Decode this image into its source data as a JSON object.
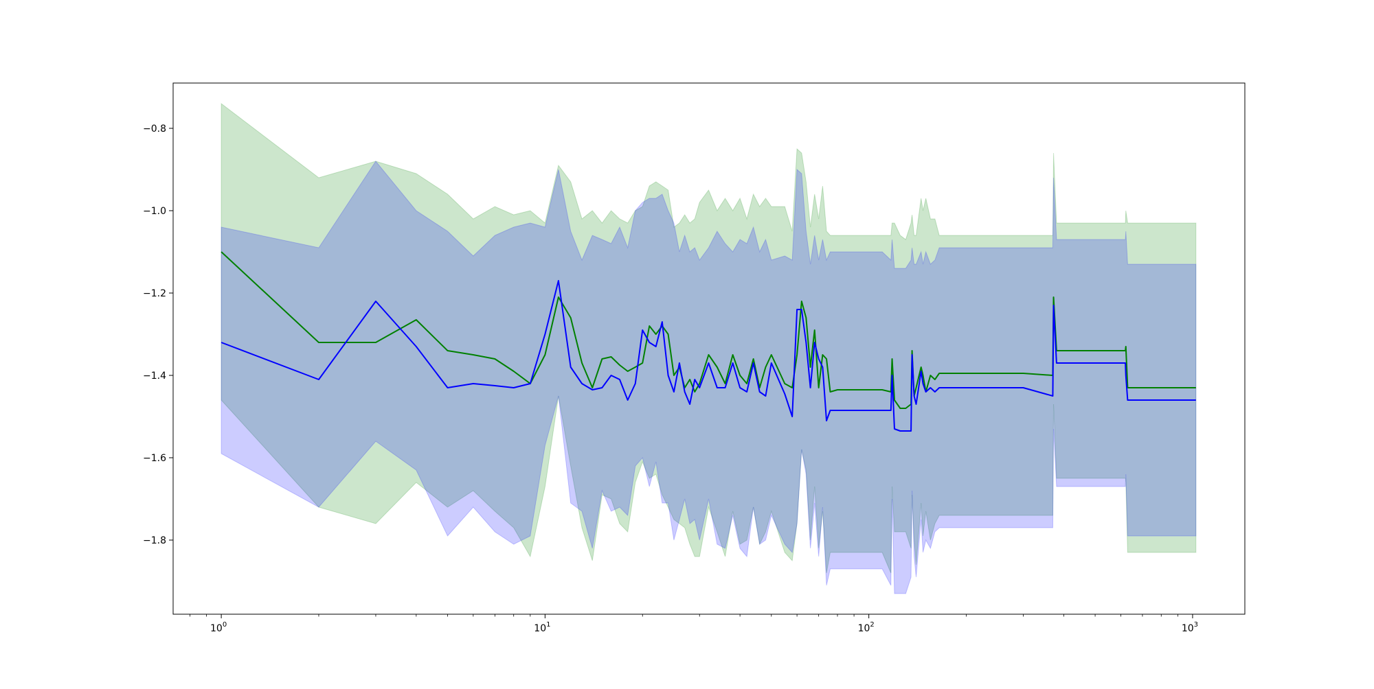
{
  "chart_data": {
    "type": "line",
    "title": "",
    "xlabel": "",
    "ylabel": "",
    "xscale": "log",
    "xlim": [
      0.71,
      1450
    ],
    "ylim": [
      -1.98,
      -0.69
    ],
    "grid": false,
    "x_ticks": [
      {
        "value": 1,
        "base": "10",
        "exp": "0"
      },
      {
        "value": 10,
        "base": "10",
        "exp": "1"
      },
      {
        "value": 100,
        "base": "10",
        "exp": "2"
      },
      {
        "value": 1000,
        "base": "10",
        "exp": "3"
      }
    ],
    "y_ticks": [
      {
        "value": -0.8,
        "label": "−0.8"
      },
      {
        "value": -1.0,
        "label": "−1.0"
      },
      {
        "value": -1.2,
        "label": "−1.2"
      },
      {
        "value": -1.4,
        "label": "−1.4"
      },
      {
        "value": -1.6,
        "label": "−1.6"
      },
      {
        "value": -1.8,
        "label": "−1.8"
      }
    ],
    "series": [
      {
        "color": "#008000",
        "band_alpha": 0.2,
        "x": [
          1,
          2,
          3,
          4,
          5,
          6,
          7,
          8,
          9,
          10,
          11,
          12,
          13,
          14,
          15,
          16,
          17,
          18,
          19,
          20,
          21,
          22,
          23,
          24,
          25,
          26,
          27,
          28,
          29,
          30,
          32,
          34,
          36,
          38,
          40,
          42,
          44,
          46,
          48,
          50,
          55,
          58,
          60,
          62,
          64,
          66,
          68,
          70,
          72,
          74,
          76,
          80,
          90,
          100,
          110,
          117,
          118,
          120,
          125,
          130,
          135,
          136,
          138,
          140,
          145,
          147,
          150,
          155,
          160,
          165,
          200,
          250,
          300,
          370,
          372,
          380,
          400,
          500,
          600,
          620,
          622,
          630,
          700,
          800,
          1024
        ],
        "y": [
          -1.1,
          -1.32,
          -1.32,
          -1.265,
          -1.34,
          -1.35,
          -1.36,
          -1.39,
          -1.42,
          -1.35,
          -1.21,
          -1.26,
          -1.37,
          -1.43,
          -1.36,
          -1.355,
          -1.375,
          -1.39,
          -1.38,
          -1.37,
          -1.28,
          -1.3,
          -1.28,
          -1.3,
          -1.4,
          -1.38,
          -1.43,
          -1.41,
          -1.44,
          -1.42,
          -1.35,
          -1.38,
          -1.42,
          -1.35,
          -1.4,
          -1.42,
          -1.36,
          -1.43,
          -1.38,
          -1.35,
          -1.42,
          -1.43,
          -1.35,
          -1.22,
          -1.26,
          -1.38,
          -1.29,
          -1.43,
          -1.35,
          -1.36,
          -1.44,
          -1.435,
          -1.435,
          -1.435,
          -1.435,
          -1.44,
          -1.36,
          -1.46,
          -1.48,
          -1.48,
          -1.47,
          -1.34,
          -1.45,
          -1.43,
          -1.38,
          -1.4,
          -1.44,
          -1.4,
          -1.41,
          -1.395,
          -1.395,
          -1.395,
          -1.395,
          -1.4,
          -1.21,
          -1.34,
          -1.34,
          -1.34,
          -1.34,
          -1.34,
          -1.33,
          -1.43,
          -1.43,
          -1.43,
          -1.43
        ],
        "upper": [
          -0.74,
          -0.92,
          -0.88,
          -0.91,
          -0.96,
          -1.02,
          -0.99,
          -1.01,
          -1.0,
          -1.03,
          -0.89,
          -0.93,
          -1.02,
          -1.0,
          -1.03,
          -1.0,
          -1.02,
          -1.03,
          -1.0,
          -0.99,
          -0.94,
          -0.93,
          -0.94,
          -0.95,
          -1.04,
          -1.03,
          -1.01,
          -1.03,
          -1.02,
          -0.98,
          -0.95,
          -1.0,
          -0.97,
          -1.0,
          -0.97,
          -1.02,
          -0.96,
          -0.99,
          -0.97,
          -0.99,
          -0.99,
          -1.05,
          -0.85,
          -0.86,
          -0.93,
          -1.04,
          -0.96,
          -1.02,
          -0.94,
          -1.05,
          -1.06,
          -1.06,
          -1.06,
          -1.06,
          -1.06,
          -1.06,
          -1.03,
          -1.03,
          -1.06,
          -1.07,
          -1.03,
          -1.01,
          -1.06,
          -1.06,
          -0.97,
          -1.0,
          -0.97,
          -1.02,
          -1.02,
          -1.06,
          -1.06,
          -1.06,
          -1.06,
          -1.06,
          -0.86,
          -1.03,
          -1.03,
          -1.03,
          -1.03,
          -1.03,
          -1.0,
          -1.03,
          -1.03,
          -1.03,
          -1.03
        ],
        "lower": [
          -1.46,
          -1.72,
          -1.76,
          -1.66,
          -1.72,
          -1.68,
          -1.73,
          -1.77,
          -1.84,
          -1.67,
          -1.45,
          -1.62,
          -1.77,
          -1.85,
          -1.69,
          -1.7,
          -1.76,
          -1.78,
          -1.66,
          -1.61,
          -1.65,
          -1.64,
          -1.69,
          -1.72,
          -1.75,
          -1.76,
          -1.77,
          -1.81,
          -1.84,
          -1.84,
          -1.72,
          -1.78,
          -1.84,
          -1.73,
          -1.81,
          -1.8,
          -1.72,
          -1.81,
          -1.78,
          -1.73,
          -1.83,
          -1.85,
          -1.76,
          -1.58,
          -1.63,
          -1.8,
          -1.67,
          -1.82,
          -1.73,
          -1.88,
          -1.83,
          -1.83,
          -1.83,
          -1.83,
          -1.83,
          -1.88,
          -1.67,
          -1.78,
          -1.78,
          -1.78,
          -1.82,
          -1.69,
          -1.8,
          -1.86,
          -1.71,
          -1.79,
          -1.73,
          -1.8,
          -1.76,
          -1.74,
          -1.74,
          -1.74,
          -1.74,
          -1.74,
          -1.47,
          -1.65,
          -1.65,
          -1.65,
          -1.65,
          -1.65,
          -1.66,
          -1.83,
          -1.83,
          -1.83,
          -1.83
        ]
      },
      {
        "color": "#0000ff",
        "band_alpha": 0.2,
        "x": [
          1,
          2,
          3,
          4,
          5,
          6,
          7,
          8,
          9,
          10,
          11,
          12,
          13,
          14,
          15,
          16,
          17,
          18,
          19,
          20,
          21,
          22,
          23,
          24,
          25,
          26,
          27,
          28,
          29,
          30,
          32,
          34,
          36,
          38,
          40,
          42,
          44,
          46,
          48,
          50,
          55,
          58,
          60,
          62,
          64,
          66,
          68,
          70,
          72,
          74,
          76,
          80,
          90,
          100,
          110,
          117,
          118,
          120,
          125,
          130,
          135,
          136,
          138,
          140,
          145,
          147,
          150,
          155,
          160,
          165,
          200,
          250,
          300,
          370,
          372,
          380,
          400,
          500,
          600,
          620,
          622,
          630,
          700,
          800,
          1024
        ],
        "y": [
          -1.32,
          -1.41,
          -1.22,
          -1.33,
          -1.43,
          -1.42,
          -1.425,
          -1.43,
          -1.42,
          -1.3,
          -1.17,
          -1.38,
          -1.42,
          -1.435,
          -1.43,
          -1.4,
          -1.41,
          -1.46,
          -1.42,
          -1.29,
          -1.32,
          -1.33,
          -1.27,
          -1.4,
          -1.44,
          -1.37,
          -1.44,
          -1.47,
          -1.41,
          -1.43,
          -1.37,
          -1.43,
          -1.43,
          -1.37,
          -1.43,
          -1.44,
          -1.37,
          -1.44,
          -1.45,
          -1.37,
          -1.445,
          -1.5,
          -1.24,
          -1.24,
          -1.32,
          -1.43,
          -1.32,
          -1.36,
          -1.38,
          -1.51,
          -1.485,
          -1.485,
          -1.485,
          -1.485,
          -1.485,
          -1.485,
          -1.4,
          -1.53,
          -1.535,
          -1.535,
          -1.535,
          -1.35,
          -1.45,
          -1.47,
          -1.39,
          -1.42,
          -1.44,
          -1.43,
          -1.44,
          -1.43,
          -1.43,
          -1.43,
          -1.43,
          -1.45,
          -1.23,
          -1.37,
          -1.37,
          -1.37,
          -1.37,
          -1.37,
          -1.4,
          -1.46,
          -1.46,
          -1.46,
          -1.46
        ],
        "upper": [
          -1.04,
          -1.09,
          -0.88,
          -1.0,
          -1.05,
          -1.11,
          -1.06,
          -1.04,
          -1.03,
          -1.04,
          -0.9,
          -1.05,
          -1.12,
          -1.06,
          -1.07,
          -1.08,
          -1.04,
          -1.09,
          -1.0,
          -0.98,
          -0.97,
          -0.97,
          -0.96,
          -1.0,
          -1.03,
          -1.1,
          -1.06,
          -1.1,
          -1.09,
          -1.12,
          -1.09,
          -1.05,
          -1.08,
          -1.1,
          -1.07,
          -1.08,
          -1.04,
          -1.1,
          -1.07,
          -1.12,
          -1.11,
          -1.12,
          -0.9,
          -0.91,
          -1.05,
          -1.13,
          -1.06,
          -1.12,
          -1.07,
          -1.12,
          -1.1,
          -1.1,
          -1.1,
          -1.1,
          -1.1,
          -1.12,
          -1.07,
          -1.14,
          -1.14,
          -1.14,
          -1.12,
          -1.09,
          -1.13,
          -1.13,
          -1.1,
          -1.13,
          -1.1,
          -1.13,
          -1.12,
          -1.09,
          -1.09,
          -1.09,
          -1.09,
          -1.09,
          -0.92,
          -1.07,
          -1.07,
          -1.07,
          -1.07,
          -1.07,
          -1.05,
          -1.13,
          -1.13,
          -1.13,
          -1.13
        ],
        "lower": [
          -1.59,
          -1.72,
          -1.56,
          -1.63,
          -1.79,
          -1.72,
          -1.78,
          -1.81,
          -1.79,
          -1.57,
          -1.45,
          -1.71,
          -1.73,
          -1.82,
          -1.68,
          -1.73,
          -1.72,
          -1.74,
          -1.62,
          -1.6,
          -1.67,
          -1.61,
          -1.71,
          -1.71,
          -1.8,
          -1.75,
          -1.7,
          -1.76,
          -1.75,
          -1.8,
          -1.7,
          -1.81,
          -1.82,
          -1.74,
          -1.82,
          -1.84,
          -1.72,
          -1.81,
          -1.8,
          -1.74,
          -1.81,
          -1.83,
          -1.76,
          -1.58,
          -1.64,
          -1.82,
          -1.71,
          -1.84,
          -1.72,
          -1.91,
          -1.87,
          -1.87,
          -1.87,
          -1.87,
          -1.87,
          -1.91,
          -1.7,
          -1.93,
          -1.93,
          -1.93,
          -1.89,
          -1.68,
          -1.84,
          -1.89,
          -1.75,
          -1.83,
          -1.8,
          -1.82,
          -1.78,
          -1.77,
          -1.77,
          -1.77,
          -1.77,
          -1.77,
          -1.53,
          -1.67,
          -1.67,
          -1.67,
          -1.67,
          -1.67,
          -1.64,
          -1.79,
          -1.79,
          -1.79,
          -1.79
        ]
      }
    ]
  }
}
